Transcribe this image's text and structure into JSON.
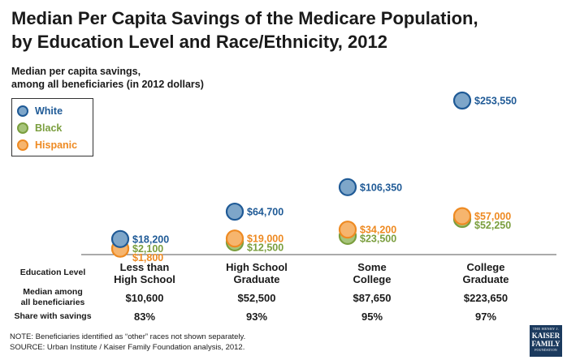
{
  "title_line1": "Median Per Capita Savings of the Medicare Population,",
  "title_line2": "by Education Level and Race/Ethnicity, 2012",
  "subtitle_line1": "Median per capita savings,",
  "subtitle_line2": "among all beneficiaries (in 2012 dollars)",
  "colors": {
    "white_fill": "#7ea6c9",
    "white_stroke": "#1f5a96",
    "black_fill": "#a6c47a",
    "black_stroke": "#7a9e3e",
    "hispanic_fill": "#f6b56e",
    "hispanic_stroke": "#ee8a22",
    "white_text": "#1f5a96",
    "black_text": "#7a9e3e",
    "hispanic_text": "#ee8a22"
  },
  "chart_data": {
    "type": "scatter",
    "categories": [
      "Less than High School",
      "High School Graduate",
      "Some College",
      "College Graduate"
    ],
    "series": [
      {
        "name": "White",
        "values": [
          18200,
          64700,
          106350,
          253550
        ],
        "labels": [
          "$18,200",
          "$64,700",
          "$106,350",
          "$253,550"
        ]
      },
      {
        "name": "Black",
        "values": [
          2100,
          12500,
          23500,
          52250
        ],
        "labels": [
          "$2,100",
          "$12,500",
          "$23,500",
          "$52,250"
        ]
      },
      {
        "name": "Hispanic",
        "values": [
          1800,
          19000,
          34200,
          57000
        ],
        "labels": [
          "$1,800",
          "$19,000",
          "$34,200",
          "$57,000"
        ]
      }
    ],
    "ylim": [
      0,
      260000
    ],
    "legend": "top-left",
    "grid": false
  },
  "table": {
    "row_labels": {
      "education": "Education Level",
      "median_line1": "Median among",
      "median_line2": "all beneficiaries",
      "share": "Share with savings"
    },
    "categories": [
      {
        "line1": "Less than",
        "line2": "High School",
        "median": "$10,600",
        "share": "83%"
      },
      {
        "line1": "High School",
        "line2": "Graduate",
        "median": "$52,500",
        "share": "93%"
      },
      {
        "line1": "Some",
        "line2": "College",
        "median": "$87,650",
        "share": "95%"
      },
      {
        "line1": "College",
        "line2": "Graduate",
        "median": "$223,650",
        "share": "97%"
      }
    ]
  },
  "notes": {
    "note": "NOTE: Beneficiaries identified as “other” races not shown separately.",
    "source": "SOURCE: Urban Institute / Kaiser Family Foundation analysis, 2012."
  },
  "logo": {
    "line1": "THE HENRY J.",
    "line2a": "KAISER",
    "line2b": "FAMILY",
    "line3": "FOUNDATION"
  }
}
